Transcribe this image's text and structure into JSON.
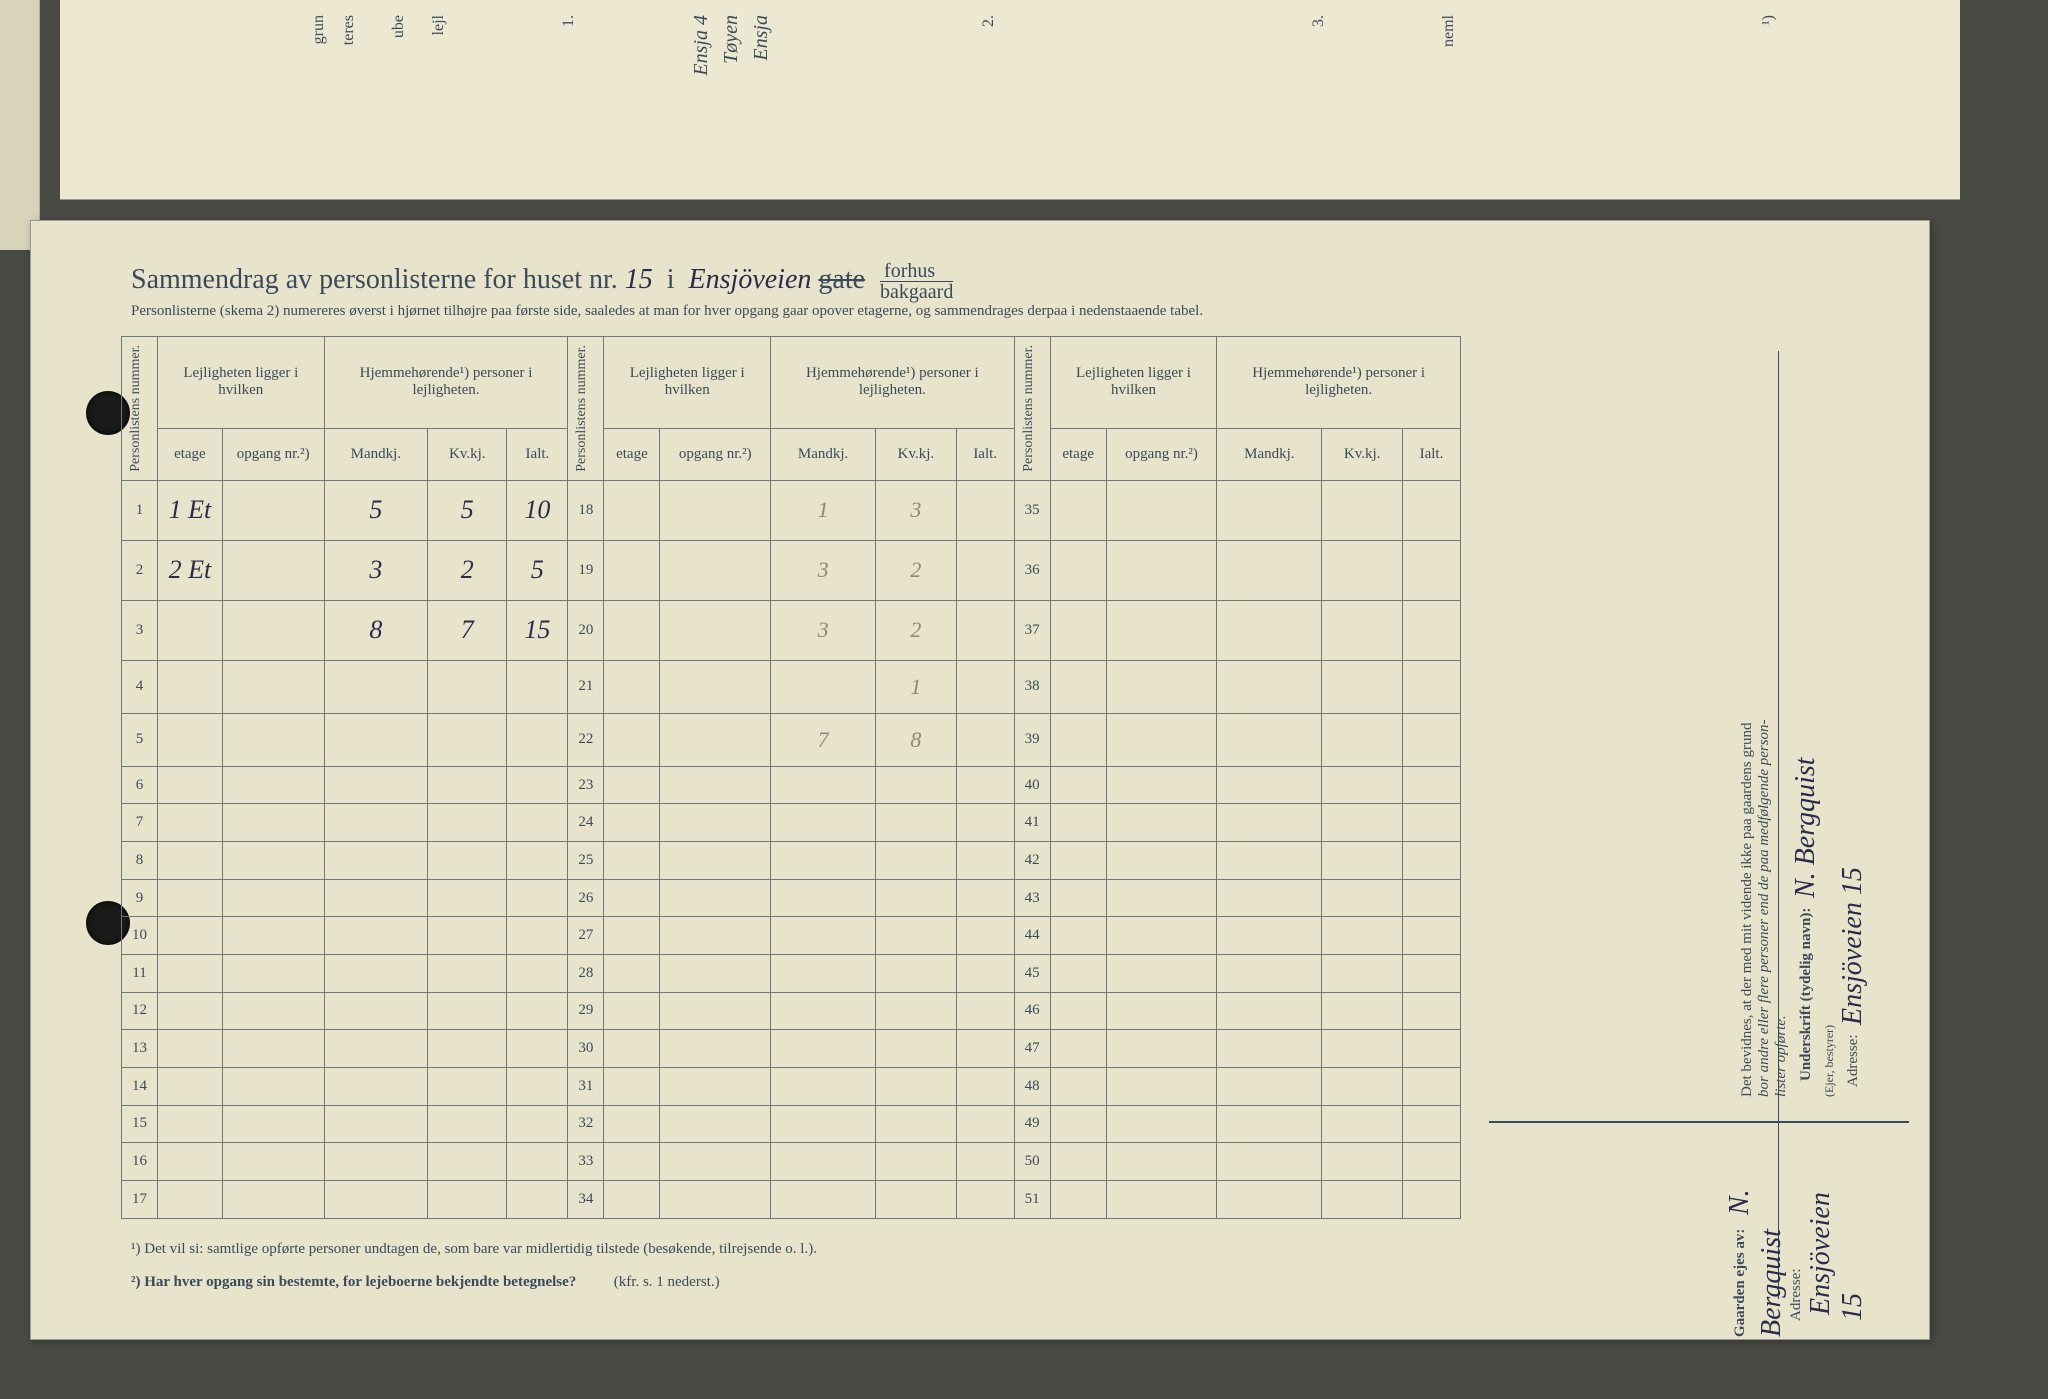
{
  "title": {
    "prefix": "Sammendrag av personlisterne for huset nr.",
    "house_nr": "15",
    "mid": "i",
    "street": "Ensjöveien",
    "gate": "gate",
    "frac_top": "forhus",
    "frac_bot": "bakgaard"
  },
  "subtitle": "Personlisterne (skema 2) numereres øverst i hjørnet tilhøjre paa første side, saaledes at man for hver opgang gaar opover etagerne, og sammendrages derpaa i nedenstaaende tabel.",
  "headers": {
    "persnum": "Personlistens nummer.",
    "leil": "Lejligheten ligger i hvilken",
    "hjem": "Hjemmehørende¹) personer i lejligheten.",
    "etage": "etage",
    "opgang": "opgang nr.²)",
    "mandkj": "Mandkj.",
    "kvkj": "Kv.kj.",
    "ialt": "Ialt."
  },
  "rows_a": [
    {
      "n": "1",
      "etage": "1 Et",
      "m": "5",
      "k": "5",
      "t": "10"
    },
    {
      "n": "2",
      "etage": "2 Et",
      "m": "3",
      "k": "2",
      "t": "5"
    },
    {
      "n": "3",
      "etage": "",
      "m": "8",
      "k": "7",
      "t": "15",
      "sum": true
    },
    {
      "n": "4"
    },
    {
      "n": "5"
    },
    {
      "n": "6"
    },
    {
      "n": "7"
    },
    {
      "n": "8"
    },
    {
      "n": "9"
    },
    {
      "n": "10"
    },
    {
      "n": "11"
    },
    {
      "n": "12"
    },
    {
      "n": "13"
    },
    {
      "n": "14"
    },
    {
      "n": "15"
    },
    {
      "n": "16"
    },
    {
      "n": "17"
    }
  ],
  "rows_b": [
    {
      "n": "18",
      "m": "1",
      "k": "3"
    },
    {
      "n": "19",
      "m": "3",
      "k": "2"
    },
    {
      "n": "20",
      "m": "3",
      "k": "2"
    },
    {
      "n": "21",
      "k": "1"
    },
    {
      "n": "22",
      "m": "7",
      "k": "8",
      "sum": true
    },
    {
      "n": "23"
    },
    {
      "n": "24"
    },
    {
      "n": "25"
    },
    {
      "n": "26"
    },
    {
      "n": "27"
    },
    {
      "n": "28"
    },
    {
      "n": "29"
    },
    {
      "n": "30"
    },
    {
      "n": "31"
    },
    {
      "n": "32"
    },
    {
      "n": "33"
    },
    {
      "n": "34"
    }
  ],
  "rows_c": [
    {
      "n": "35"
    },
    {
      "n": "36"
    },
    {
      "n": "37"
    },
    {
      "n": "38"
    },
    {
      "n": "39"
    },
    {
      "n": "40"
    },
    {
      "n": "41"
    },
    {
      "n": "42"
    },
    {
      "n": "43"
    },
    {
      "n": "44"
    },
    {
      "n": "45"
    },
    {
      "n": "46"
    },
    {
      "n": "47"
    },
    {
      "n": "48"
    },
    {
      "n": "49"
    },
    {
      "n": "50"
    },
    {
      "n": "51"
    }
  ],
  "footnotes": {
    "f1": "¹)  Det vil si: samtlige opførte personer undtagen de, som bare var midlertidig tilstede (besøkende, tilrejsende o. l.).",
    "f2": "²)  Har hver opgang sin bestemte, for lejeboerne bekjendte betegnelse?",
    "f2_ref": "(kfr. s. 1 nederst.)"
  },
  "side_attest": {
    "line1": "Det bevidnes, at der med mit vidende ikke paa gaardens grund",
    "line2": "bor andre eller flere personer end de paa medfølgende person-",
    "line3": "lister opførte.",
    "under_label": "Underskrift (tydelig navn):",
    "signature": "N. Bergquist",
    "role": "(Ejer, bestyrer)",
    "adr_label": "Adresse:",
    "address": "Ensjöveien 15"
  },
  "side_owner": {
    "label": "Gaarden ejes av:",
    "name": "N. Bergquist",
    "adr_label": "Adresse:",
    "address": "Ensjöveien 15"
  },
  "top_fragments": [
    "grun",
    "teres",
    "ube",
    "lejl",
    "1.",
    "Ensja 4",
    "Tøyen",
    "Ensja",
    "2.",
    "3.",
    "neml",
    "¹)"
  ],
  "colors": {
    "paper": "#e8e4cc",
    "ink": "#3a4a5a",
    "handwriting": "#2a2a4a",
    "faint": "#8a8a7a",
    "bg": "#4a4a45",
    "rule": "#6a7a7a"
  }
}
